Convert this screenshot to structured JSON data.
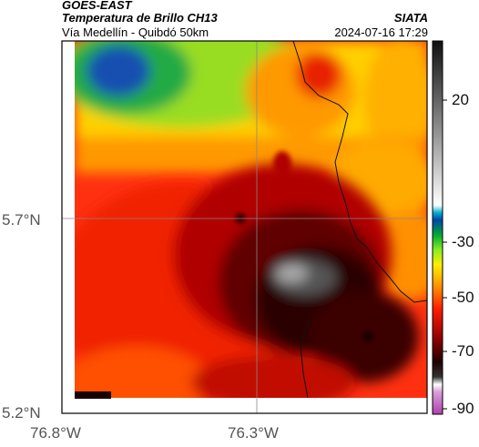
{
  "header": {
    "satellite": "GOES-EAST",
    "product": "Temperatura de Brillo CH13",
    "region": "Vía Medellín - Quibdó 50km",
    "agency": "SIATA",
    "datetime": "2024-07-16 17:29"
  },
  "map": {
    "lat_labels": [
      "5.7°N",
      "5.2°N"
    ],
    "lon_labels": [
      "76.8°W",
      "76.3°W"
    ]
  },
  "colorbar": {
    "ticks": [
      "20",
      "-30",
      "-50",
      "-70",
      "-90"
    ]
  },
  "colors": {
    "cold_top": "#1a1a1a",
    "warm": "#ff2a00",
    "mid": "#ff8c00",
    "clear": "#ffd700",
    "green": "#66dd22",
    "blue": "#1040a0"
  }
}
